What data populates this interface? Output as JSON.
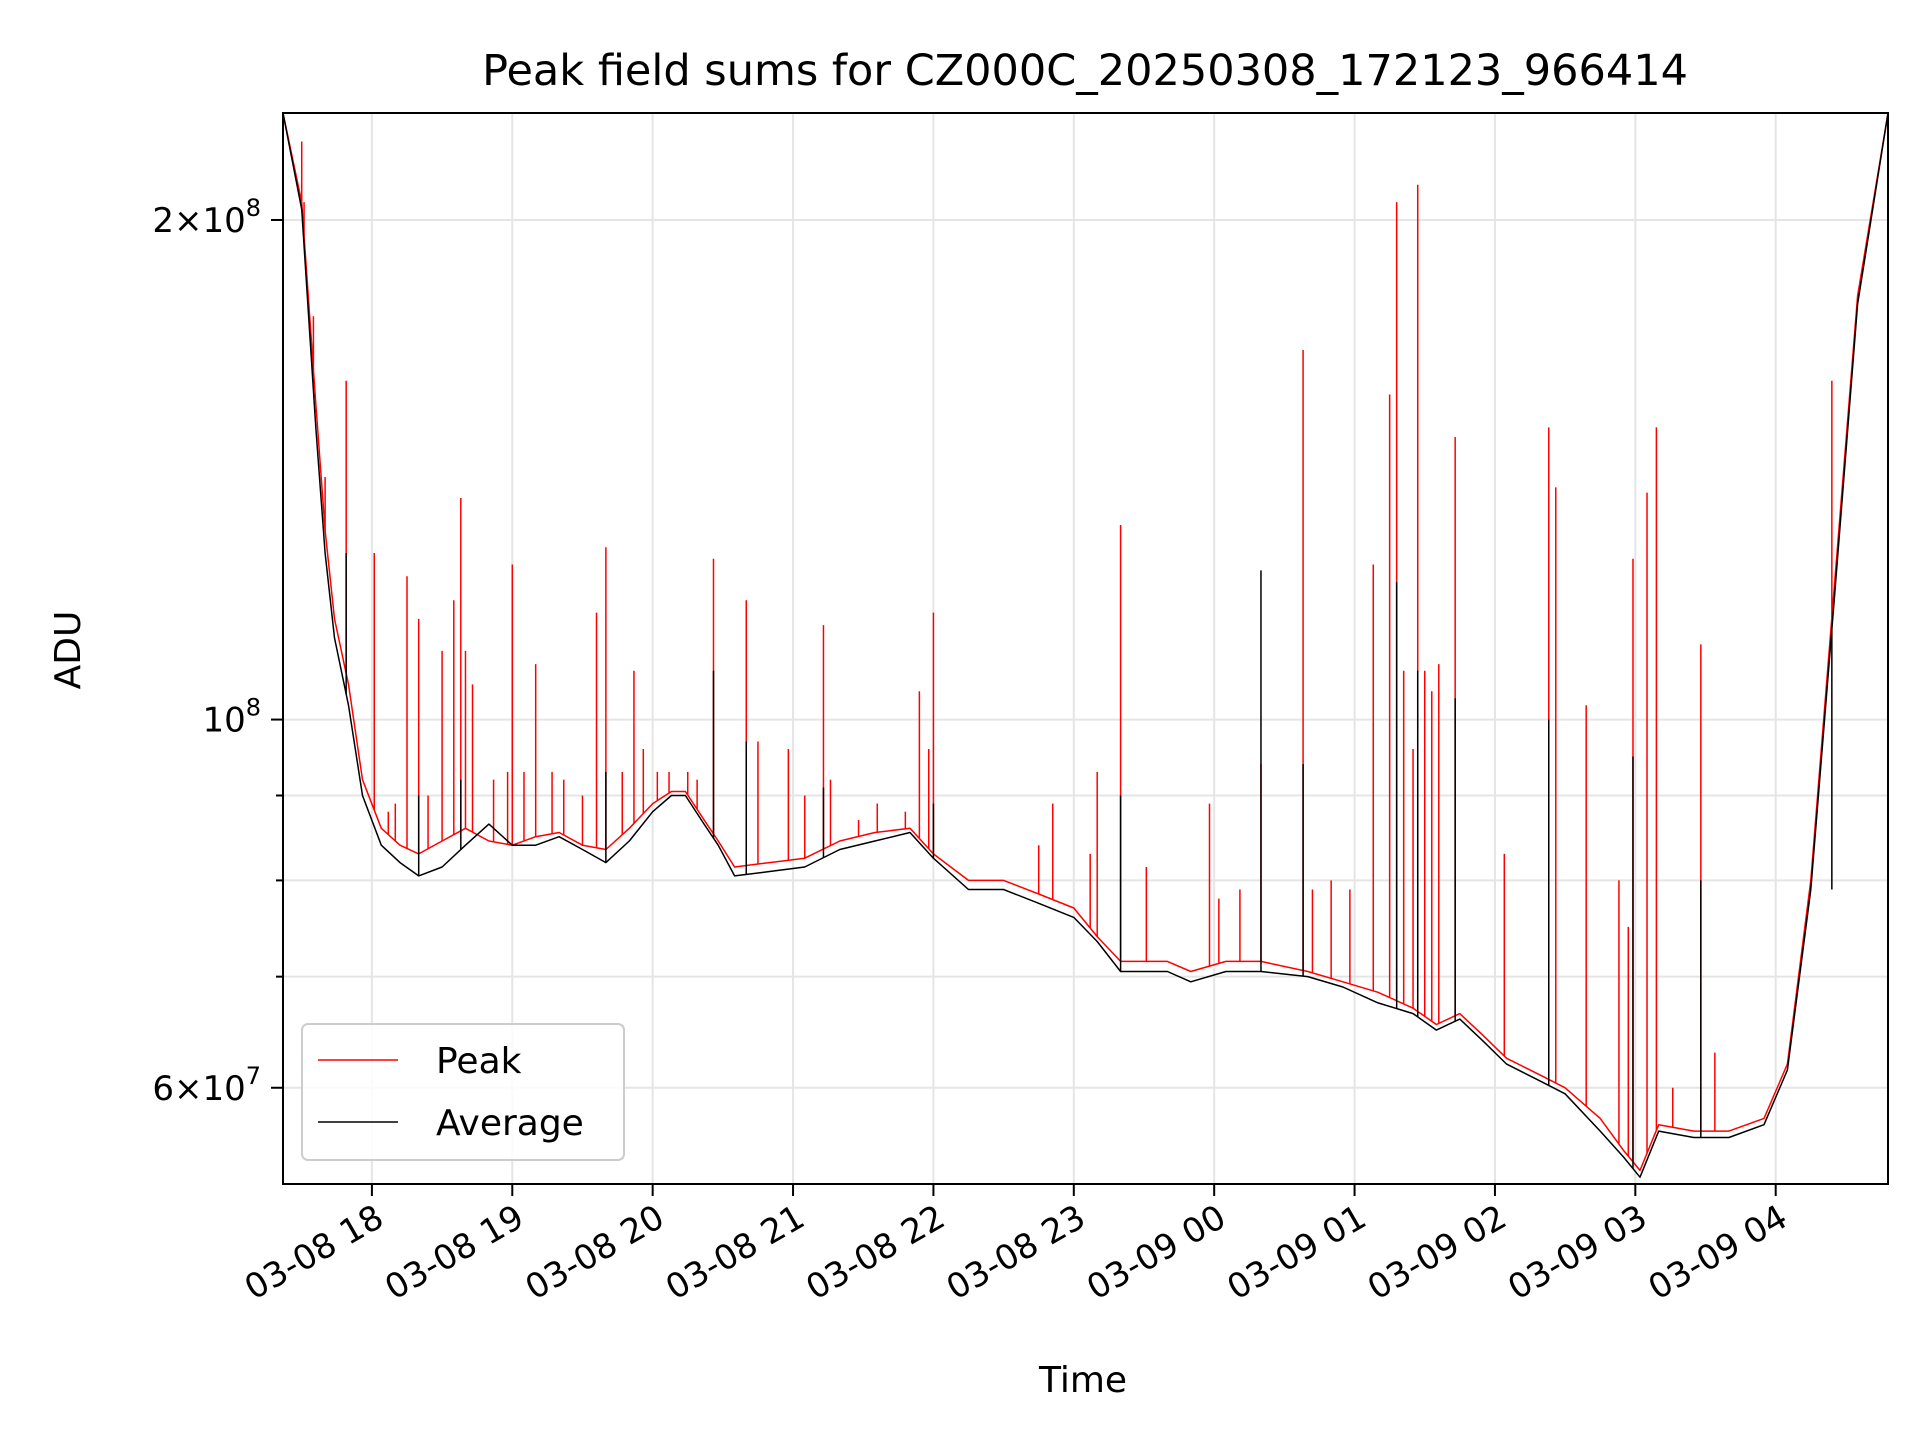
{
  "chart_data": {
    "type": "line",
    "title": "Peak field sums for CZ000C_20250308_172123_966414",
    "xlabel": "Time",
    "ylabel": "ADU",
    "yscale": "log",
    "ylim": [
      52500000,
      232000000
    ],
    "xlim": [
      "2025-03-08 17:22",
      "2025-03-09 04:48"
    ],
    "grid": true,
    "legend_position": "lower-left",
    "x_ticks": [
      {
        "at": "2025-03-08 18:00",
        "label": "03-08 18"
      },
      {
        "at": "2025-03-08 19:00",
        "label": "03-08 19"
      },
      {
        "at": "2025-03-08 20:00",
        "label": "03-08 20"
      },
      {
        "at": "2025-03-08 21:00",
        "label": "03-08 21"
      },
      {
        "at": "2025-03-08 22:00",
        "label": "03-08 22"
      },
      {
        "at": "2025-03-08 23:00",
        "label": "03-08 23"
      },
      {
        "at": "2025-03-09 00:00",
        "label": "03-09 00"
      },
      {
        "at": "2025-03-09 01:00",
        "label": "03-09 01"
      },
      {
        "at": "2025-03-09 02:00",
        "label": "03-09 02"
      },
      {
        "at": "2025-03-09 03:00",
        "label": "03-09 03"
      },
      {
        "at": "2025-03-09 04:00",
        "label": "03-09 04"
      }
    ],
    "y_major_ticks": [
      {
        "value": 60000000,
        "mant": "6",
        "exp": "7"
      },
      {
        "value": 100000000,
        "mant": "",
        "exp": "8"
      },
      {
        "value": 200000000,
        "mant": "2",
        "exp": "8"
      }
    ],
    "y_minor_ticks": [
      70000000,
      80000000,
      90000000
    ],
    "series": [
      {
        "name": "Peak",
        "color": "#ff0000",
        "points": [
          [
            "2025-03-08 17:22",
            232000000
          ],
          [
            "2025-03-08 17:30",
            205000000
          ],
          [
            "2025-03-08 17:36",
            155000000
          ],
          [
            "2025-03-08 17:40",
            130000000
          ],
          [
            "2025-03-08 17:44",
            115000000
          ],
          [
            "2025-03-08 17:50",
            105000000
          ],
          [
            "2025-03-08 17:56",
            92000000
          ],
          [
            "2025-03-08 18:04",
            86000000
          ],
          [
            "2025-03-08 18:12",
            84000000
          ],
          [
            "2025-03-08 18:20",
            83000000
          ],
          [
            "2025-03-08 18:30",
            84500000
          ],
          [
            "2025-03-08 18:40",
            86000000
          ],
          [
            "2025-03-08 18:50",
            84500000
          ],
          [
            "2025-03-08 19:00",
            84000000
          ],
          [
            "2025-03-08 19:10",
            85000000
          ],
          [
            "2025-03-08 19:20",
            85500000
          ],
          [
            "2025-03-08 19:30",
            84000000
          ],
          [
            "2025-03-08 19:40",
            83500000
          ],
          [
            "2025-03-08 19:50",
            86000000
          ],
          [
            "2025-03-08 20:00",
            89000000
          ],
          [
            "2025-03-08 20:08",
            90500000
          ],
          [
            "2025-03-08 20:14",
            90500000
          ],
          [
            "2025-03-08 20:22",
            87000000
          ],
          [
            "2025-03-08 20:28",
            84500000
          ],
          [
            "2025-03-08 20:35",
            81500000
          ],
          [
            "2025-03-08 20:50",
            82000000
          ],
          [
            "2025-03-08 21:05",
            82500000
          ],
          [
            "2025-03-08 21:20",
            84500000
          ],
          [
            "2025-03-08 21:35",
            85500000
          ],
          [
            "2025-03-08 21:50",
            86000000
          ],
          [
            "2025-03-08 22:00",
            83000000
          ],
          [
            "2025-03-08 22:15",
            80000000
          ],
          [
            "2025-03-08 22:30",
            80000000
          ],
          [
            "2025-03-08 22:45",
            78500000
          ],
          [
            "2025-03-08 23:00",
            77000000
          ],
          [
            "2025-03-08 23:10",
            74000000
          ],
          [
            "2025-03-08 23:20",
            71500000
          ],
          [
            "2025-03-08 23:40",
            71500000
          ],
          [
            "2025-03-08 23:50",
            70500000
          ],
          [
            "2025-03-09 00:05",
            71500000
          ],
          [
            "2025-03-09 00:20",
            71500000
          ],
          [
            "2025-03-09 00:40",
            70500000
          ],
          [
            "2025-03-09 00:55",
            69500000
          ],
          [
            "2025-03-09 01:10",
            68500000
          ],
          [
            "2025-03-09 01:25",
            67000000
          ],
          [
            "2025-03-09 01:35",
            65500000
          ],
          [
            "2025-03-09 01:45",
            66500000
          ],
          [
            "2025-03-09 01:55",
            64500000
          ],
          [
            "2025-03-09 02:05",
            62500000
          ],
          [
            "2025-03-09 02:20",
            61000000
          ],
          [
            "2025-03-09 02:30",
            60000000
          ],
          [
            "2025-03-09 02:45",
            57500000
          ],
          [
            "2025-03-09 02:55",
            55000000
          ],
          [
            "2025-03-09 03:02",
            53500000
          ],
          [
            "2025-03-09 03:10",
            57000000
          ],
          [
            "2025-03-09 03:25",
            56500000
          ],
          [
            "2025-03-09 03:40",
            56500000
          ],
          [
            "2025-03-09 03:55",
            57500000
          ],
          [
            "2025-03-09 04:05",
            62000000
          ],
          [
            "2025-03-09 04:15",
            80000000
          ],
          [
            "2025-03-09 04:25",
            120000000
          ],
          [
            "2025-03-09 04:35",
            180000000
          ],
          [
            "2025-03-09 04:48",
            232000000
          ]
        ],
        "spikes": [
          [
            "2025-03-08 17:30",
            223000000
          ],
          [
            "2025-03-08 17:31",
            205000000
          ],
          [
            "2025-03-08 17:35",
            175000000
          ],
          [
            "2025-03-08 17:40",
            140000000
          ],
          [
            "2025-03-08 17:49",
            160000000
          ],
          [
            "2025-03-08 18:01",
            126000000
          ],
          [
            "2025-03-08 18:07",
            88000000
          ],
          [
            "2025-03-08 18:10",
            89000000
          ],
          [
            "2025-03-08 18:15",
            122000000
          ],
          [
            "2025-03-08 18:20",
            115000000
          ],
          [
            "2025-03-08 18:24",
            90000000
          ],
          [
            "2025-03-08 18:30",
            110000000
          ],
          [
            "2025-03-08 18:35",
            118000000
          ],
          [
            "2025-03-08 18:38",
            136000000
          ],
          [
            "2025-03-08 18:40",
            110000000
          ],
          [
            "2025-03-08 18:43",
            105000000
          ],
          [
            "2025-03-08 18:52",
            92000000
          ],
          [
            "2025-03-08 18:58",
            93000000
          ],
          [
            "2025-03-08 19:00",
            124000000
          ],
          [
            "2025-03-08 19:05",
            93000000
          ],
          [
            "2025-03-08 19:10",
            108000000
          ],
          [
            "2025-03-08 19:17",
            93000000
          ],
          [
            "2025-03-08 19:22",
            92000000
          ],
          [
            "2025-03-08 19:30",
            90000000
          ],
          [
            "2025-03-08 19:36",
            116000000
          ],
          [
            "2025-03-08 19:40",
            127000000
          ],
          [
            "2025-03-08 19:47",
            93000000
          ],
          [
            "2025-03-08 19:52",
            107000000
          ],
          [
            "2025-03-08 19:56",
            96000000
          ],
          [
            "2025-03-08 20:02",
            93000000
          ],
          [
            "2025-03-08 20:07",
            93000000
          ],
          [
            "2025-03-08 20:15",
            93000000
          ],
          [
            "2025-03-08 20:19",
            92000000
          ],
          [
            "2025-03-08 20:26",
            125000000
          ],
          [
            "2025-03-08 20:40",
            118000000
          ],
          [
            "2025-03-08 20:45",
            97000000
          ],
          [
            "2025-03-08 20:58",
            96000000
          ],
          [
            "2025-03-08 21:05",
            90000000
          ],
          [
            "2025-03-08 21:13",
            114000000
          ],
          [
            "2025-03-08 21:16",
            92000000
          ],
          [
            "2025-03-08 21:28",
            87000000
          ],
          [
            "2025-03-08 21:36",
            89000000
          ],
          [
            "2025-03-08 21:48",
            88000000
          ],
          [
            "2025-03-08 21:54",
            104000000
          ],
          [
            "2025-03-08 21:58",
            96000000
          ],
          [
            "2025-03-08 22:00",
            116000000
          ],
          [
            "2025-03-08 22:45",
            84000000
          ],
          [
            "2025-03-08 22:51",
            89000000
          ],
          [
            "2025-03-08 23:07",
            83000000
          ],
          [
            "2025-03-08 23:10",
            93000000
          ],
          [
            "2025-03-08 23:20",
            131000000
          ],
          [
            "2025-03-08 23:31",
            81500000
          ],
          [
            "2025-03-08 23:58",
            89000000
          ],
          [
            "2025-03-09 00:02",
            78000000
          ],
          [
            "2025-03-09 00:11",
            79000000
          ],
          [
            "2025-03-09 00:20",
            94000000
          ],
          [
            "2025-03-09 00:38",
            167000000
          ],
          [
            "2025-03-09 00:42",
            79000000
          ],
          [
            "2025-03-09 00:50",
            80000000
          ],
          [
            "2025-03-09 00:58",
            79000000
          ],
          [
            "2025-03-09 01:08",
            124000000
          ],
          [
            "2025-03-09 01:15",
            157000000
          ],
          [
            "2025-03-09 01:18",
            205000000
          ],
          [
            "2025-03-09 01:21",
            107000000
          ],
          [
            "2025-03-09 01:25",
            96000000
          ],
          [
            "2025-03-09 01:27",
            210000000
          ],
          [
            "2025-03-09 01:30",
            107000000
          ],
          [
            "2025-03-09 01:33",
            104000000
          ],
          [
            "2025-03-09 01:36",
            108000000
          ],
          [
            "2025-03-09 01:43",
            148000000
          ],
          [
            "2025-03-09 02:04",
            83000000
          ],
          [
            "2025-03-09 02:23",
            150000000
          ],
          [
            "2025-03-09 02:26",
            138000000
          ],
          [
            "2025-03-09 02:39",
            102000000
          ],
          [
            "2025-03-09 02:53",
            80000000
          ],
          [
            "2025-03-09 02:57",
            75000000
          ],
          [
            "2025-03-09 02:59",
            125000000
          ],
          [
            "2025-03-09 03:05",
            137000000
          ],
          [
            "2025-03-09 03:09",
            150000000
          ],
          [
            "2025-03-09 03:16",
            60000000
          ],
          [
            "2025-03-09 03:28",
            111000000
          ],
          [
            "2025-03-09 03:34",
            63000000
          ],
          [
            "2025-03-09 04:24",
            160000000
          ]
        ]
      },
      {
        "name": "Average",
        "color": "#000000",
        "points": [
          [
            "2025-03-08 17:22",
            232000000
          ],
          [
            "2025-03-08 17:30",
            203000000
          ],
          [
            "2025-03-08 17:36",
            150000000
          ],
          [
            "2025-03-08 17:40",
            126000000
          ],
          [
            "2025-03-08 17:44",
            112000000
          ],
          [
            "2025-03-08 17:50",
            102000000
          ],
          [
            "2025-03-08 17:56",
            90000000
          ],
          [
            "2025-03-08 18:04",
            84000000
          ],
          [
            "2025-03-08 18:12",
            82000000
          ],
          [
            "2025-03-08 18:20",
            80500000
          ],
          [
            "2025-03-08 18:30",
            81500000
          ],
          [
            "2025-03-08 18:40",
            84000000
          ],
          [
            "2025-03-08 18:50",
            86500000
          ],
          [
            "2025-03-08 19:00",
            84000000
          ],
          [
            "2025-03-08 19:10",
            84000000
          ],
          [
            "2025-03-08 19:20",
            85000000
          ],
          [
            "2025-03-08 19:30",
            83500000
          ],
          [
            "2025-03-08 19:40",
            82000000
          ],
          [
            "2025-03-08 19:50",
            84500000
          ],
          [
            "2025-03-08 20:00",
            88000000
          ],
          [
            "2025-03-08 20:08",
            90000000
          ],
          [
            "2025-03-08 20:14",
            90000000
          ],
          [
            "2025-03-08 20:22",
            86500000
          ],
          [
            "2025-03-08 20:28",
            84000000
          ],
          [
            "2025-03-08 20:35",
            80500000
          ],
          [
            "2025-03-08 20:50",
            81000000
          ],
          [
            "2025-03-08 21:05",
            81500000
          ],
          [
            "2025-03-08 21:20",
            83500000
          ],
          [
            "2025-03-08 21:35",
            84500000
          ],
          [
            "2025-03-08 21:50",
            85500000
          ],
          [
            "2025-03-08 22:00",
            82500000
          ],
          [
            "2025-03-08 22:15",
            79000000
          ],
          [
            "2025-03-08 22:30",
            79000000
          ],
          [
            "2025-03-08 22:45",
            77500000
          ],
          [
            "2025-03-08 23:00",
            76000000
          ],
          [
            "2025-03-08 23:10",
            73500000
          ],
          [
            "2025-03-08 23:20",
            70500000
          ],
          [
            "2025-03-08 23:40",
            70500000
          ],
          [
            "2025-03-08 23:50",
            69500000
          ],
          [
            "2025-03-09 00:05",
            70500000
          ],
          [
            "2025-03-09 00:20",
            70500000
          ],
          [
            "2025-03-09 00:40",
            70000000
          ],
          [
            "2025-03-09 00:55",
            69000000
          ],
          [
            "2025-03-09 01:10",
            67500000
          ],
          [
            "2025-03-09 01:25",
            66500000
          ],
          [
            "2025-03-09 01:35",
            65000000
          ],
          [
            "2025-03-09 01:45",
            66000000
          ],
          [
            "2025-03-09 01:55",
            64000000
          ],
          [
            "2025-03-09 02:05",
            62000000
          ],
          [
            "2025-03-09 02:20",
            60500000
          ],
          [
            "2025-03-09 02:30",
            59500000
          ],
          [
            "2025-03-09 02:45",
            56500000
          ],
          [
            "2025-03-09 02:55",
            54500000
          ],
          [
            "2025-03-09 03:02",
            53000000
          ],
          [
            "2025-03-09 03:10",
            56500000
          ],
          [
            "2025-03-09 03:25",
            56000000
          ],
          [
            "2025-03-09 03:40",
            56000000
          ],
          [
            "2025-03-09 03:55",
            57000000
          ],
          [
            "2025-03-09 04:05",
            61500000
          ],
          [
            "2025-03-09 04:15",
            79000000
          ],
          [
            "2025-03-09 04:25",
            118000000
          ],
          [
            "2025-03-09 04:35",
            178000000
          ],
          [
            "2025-03-09 04:48",
            232000000
          ]
        ],
        "spikes": [
          [
            "2025-03-08 17:49",
            126000000
          ],
          [
            "2025-03-08 18:20",
            90000000
          ],
          [
            "2025-03-08 18:38",
            92000000
          ],
          [
            "2025-03-08 19:40",
            93000000
          ],
          [
            "2025-03-08 20:26",
            107000000
          ],
          [
            "2025-03-08 20:40",
            97000000
          ],
          [
            "2025-03-08 21:13",
            91000000
          ],
          [
            "2025-03-08 22:00",
            89000000
          ],
          [
            "2025-03-08 23:20",
            90000000
          ],
          [
            "2025-03-09 00:20",
            123000000
          ],
          [
            "2025-03-09 00:38",
            94000000
          ],
          [
            "2025-03-09 01:18",
            121000000
          ],
          [
            "2025-03-09 01:27",
            107000000
          ],
          [
            "2025-03-09 01:43",
            103000000
          ],
          [
            "2025-03-09 02:23",
            100000000
          ],
          [
            "2025-03-09 02:59",
            95000000
          ],
          [
            "2025-03-09 03:28",
            80000000
          ],
          [
            "2025-03-09 04:24",
            79000000
          ]
        ]
      }
    ]
  }
}
